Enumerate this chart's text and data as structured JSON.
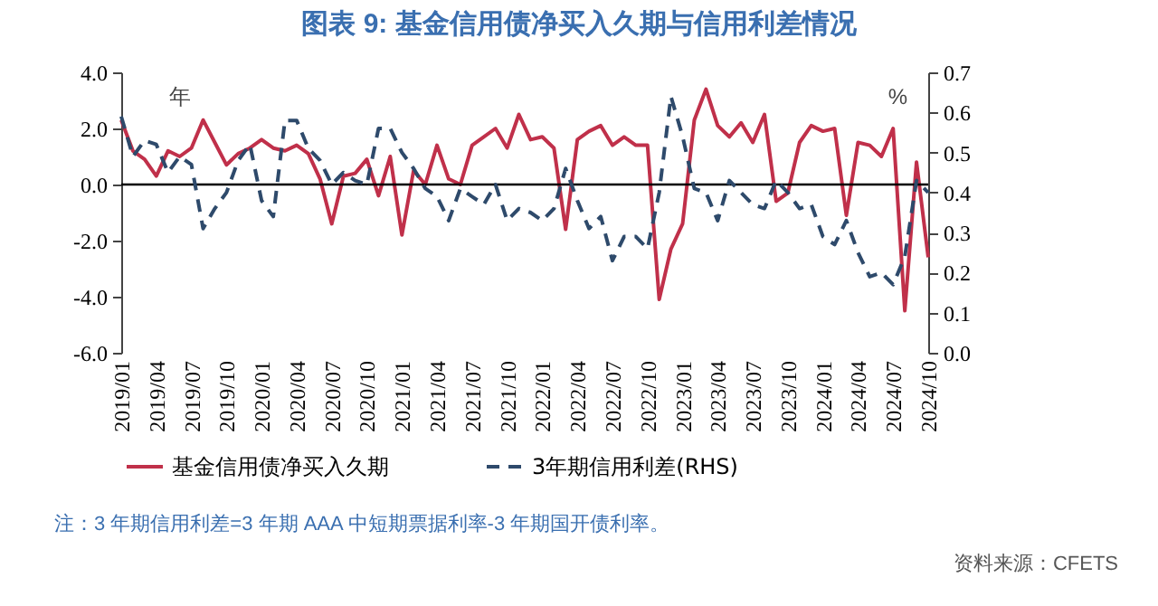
{
  "chart_data": {
    "type": "line",
    "title": "图表 9: 基金信用债净买入久期与信用利差情况",
    "categories": [
      "2019/01",
      null,
      null,
      "2019/04",
      null,
      null,
      "2019/07",
      null,
      null,
      "2019/10",
      null,
      null,
      "2020/01",
      null,
      null,
      "2020/04",
      null,
      null,
      "2020/07",
      null,
      null,
      "2020/10",
      null,
      null,
      "2021/01",
      null,
      null,
      "2021/04",
      null,
      null,
      "2021/07",
      null,
      null,
      "2021/10",
      null,
      null,
      "2022/01",
      null,
      null,
      "2022/04",
      null,
      null,
      "2022/07",
      null,
      null,
      "2022/10",
      null,
      null,
      "2023/01",
      null,
      null,
      "2023/04",
      null,
      null,
      "2023/07",
      null,
      null,
      "2023/10",
      null,
      null,
      "2024/01",
      null,
      null,
      "2024/04",
      null,
      null,
      "2024/07",
      null,
      null,
      "2024/10"
    ],
    "series": [
      {
        "name": "基金信用债净买入久期",
        "color": "#c0304a",
        "line_style": "solid",
        "values": [
          2.3,
          1.2,
          0.9,
          0.3,
          1.2,
          1.0,
          1.3,
          2.3,
          1.5,
          0.7,
          1.1,
          1.3,
          1.6,
          1.3,
          1.2,
          1.4,
          1.1,
          0.2,
          -1.4,
          0.3,
          0.4,
          0.9,
          -0.4,
          1.0,
          -1.8,
          0.5,
          0.0,
          1.4,
          0.2,
          0.0,
          1.4,
          1.7,
          2.0,
          1.3,
          2.5,
          1.6,
          1.7,
          1.3,
          -1.6,
          1.6,
          1.9,
          2.1,
          1.4,
          1.7,
          1.4,
          1.4,
          -4.1,
          -2.3,
          -1.4,
          2.3,
          3.4,
          2.1,
          1.7,
          2.2,
          1.5,
          2.5,
          -0.6,
          -0.3,
          1.5,
          2.1,
          1.9,
          2.0,
          -1.1,
          1.5,
          1.4,
          1.0,
          2.0,
          -4.5,
          0.8,
          -2.6
        ]
      },
      {
        "name": "3年期信用利差(RHS)",
        "color": "#2e4a6b",
        "line_style": "dashed",
        "axis": "y2",
        "values": [
          0.59,
          0.49,
          0.53,
          0.52,
          0.45,
          0.49,
          0.47,
          0.31,
          0.36,
          0.4,
          0.48,
          0.52,
          0.38,
          0.34,
          0.58,
          0.58,
          0.51,
          0.48,
          0.42,
          0.45,
          0.43,
          0.42,
          0.56,
          0.56,
          0.5,
          0.46,
          0.41,
          0.39,
          0.33,
          0.41,
          0.39,
          0.37,
          0.42,
          0.33,
          0.36,
          0.35,
          0.33,
          0.36,
          0.46,
          0.38,
          0.31,
          0.34,
          0.23,
          0.29,
          0.29,
          0.26,
          0.4,
          0.64,
          0.54,
          0.41,
          0.4,
          0.33,
          0.43,
          0.4,
          0.37,
          0.36,
          0.43,
          0.4,
          0.36,
          0.37,
          0.29,
          0.27,
          0.33,
          0.25,
          0.19,
          0.2,
          0.17,
          0.24,
          0.43,
          0.4
        ]
      }
    ],
    "ylabel": "年",
    "y2label": "%",
    "ylim": [
      -6,
      4
    ],
    "yticks": [
      {
        "value": -6,
        "label": "-6.0"
      },
      {
        "value": -4,
        "label": "-4.0"
      },
      {
        "value": -2,
        "label": "-2.0"
      },
      {
        "value": 0,
        "label": "0.0"
      },
      {
        "value": 2,
        "label": "2.0"
      },
      {
        "value": 4,
        "label": "4.0"
      }
    ],
    "y2lim": [
      0,
      0.7
    ],
    "y2ticks": [
      {
        "value": 0,
        "label": "0.0"
      },
      0.1,
      0.2,
      0.3,
      0.4,
      0.5,
      0.6,
      0.7
    ],
    "ref_lines": [
      {
        "axis": "y",
        "value": 0,
        "color": "#000000"
      }
    ],
    "legend": "bottom",
    "marker": "none",
    "grid": false,
    "annotations": [
      "注：3 年期信用利差=3 年期 AAA 中短期票据利率-3 年期国开债利率。",
      "资料来源：CFETS"
    ]
  }
}
